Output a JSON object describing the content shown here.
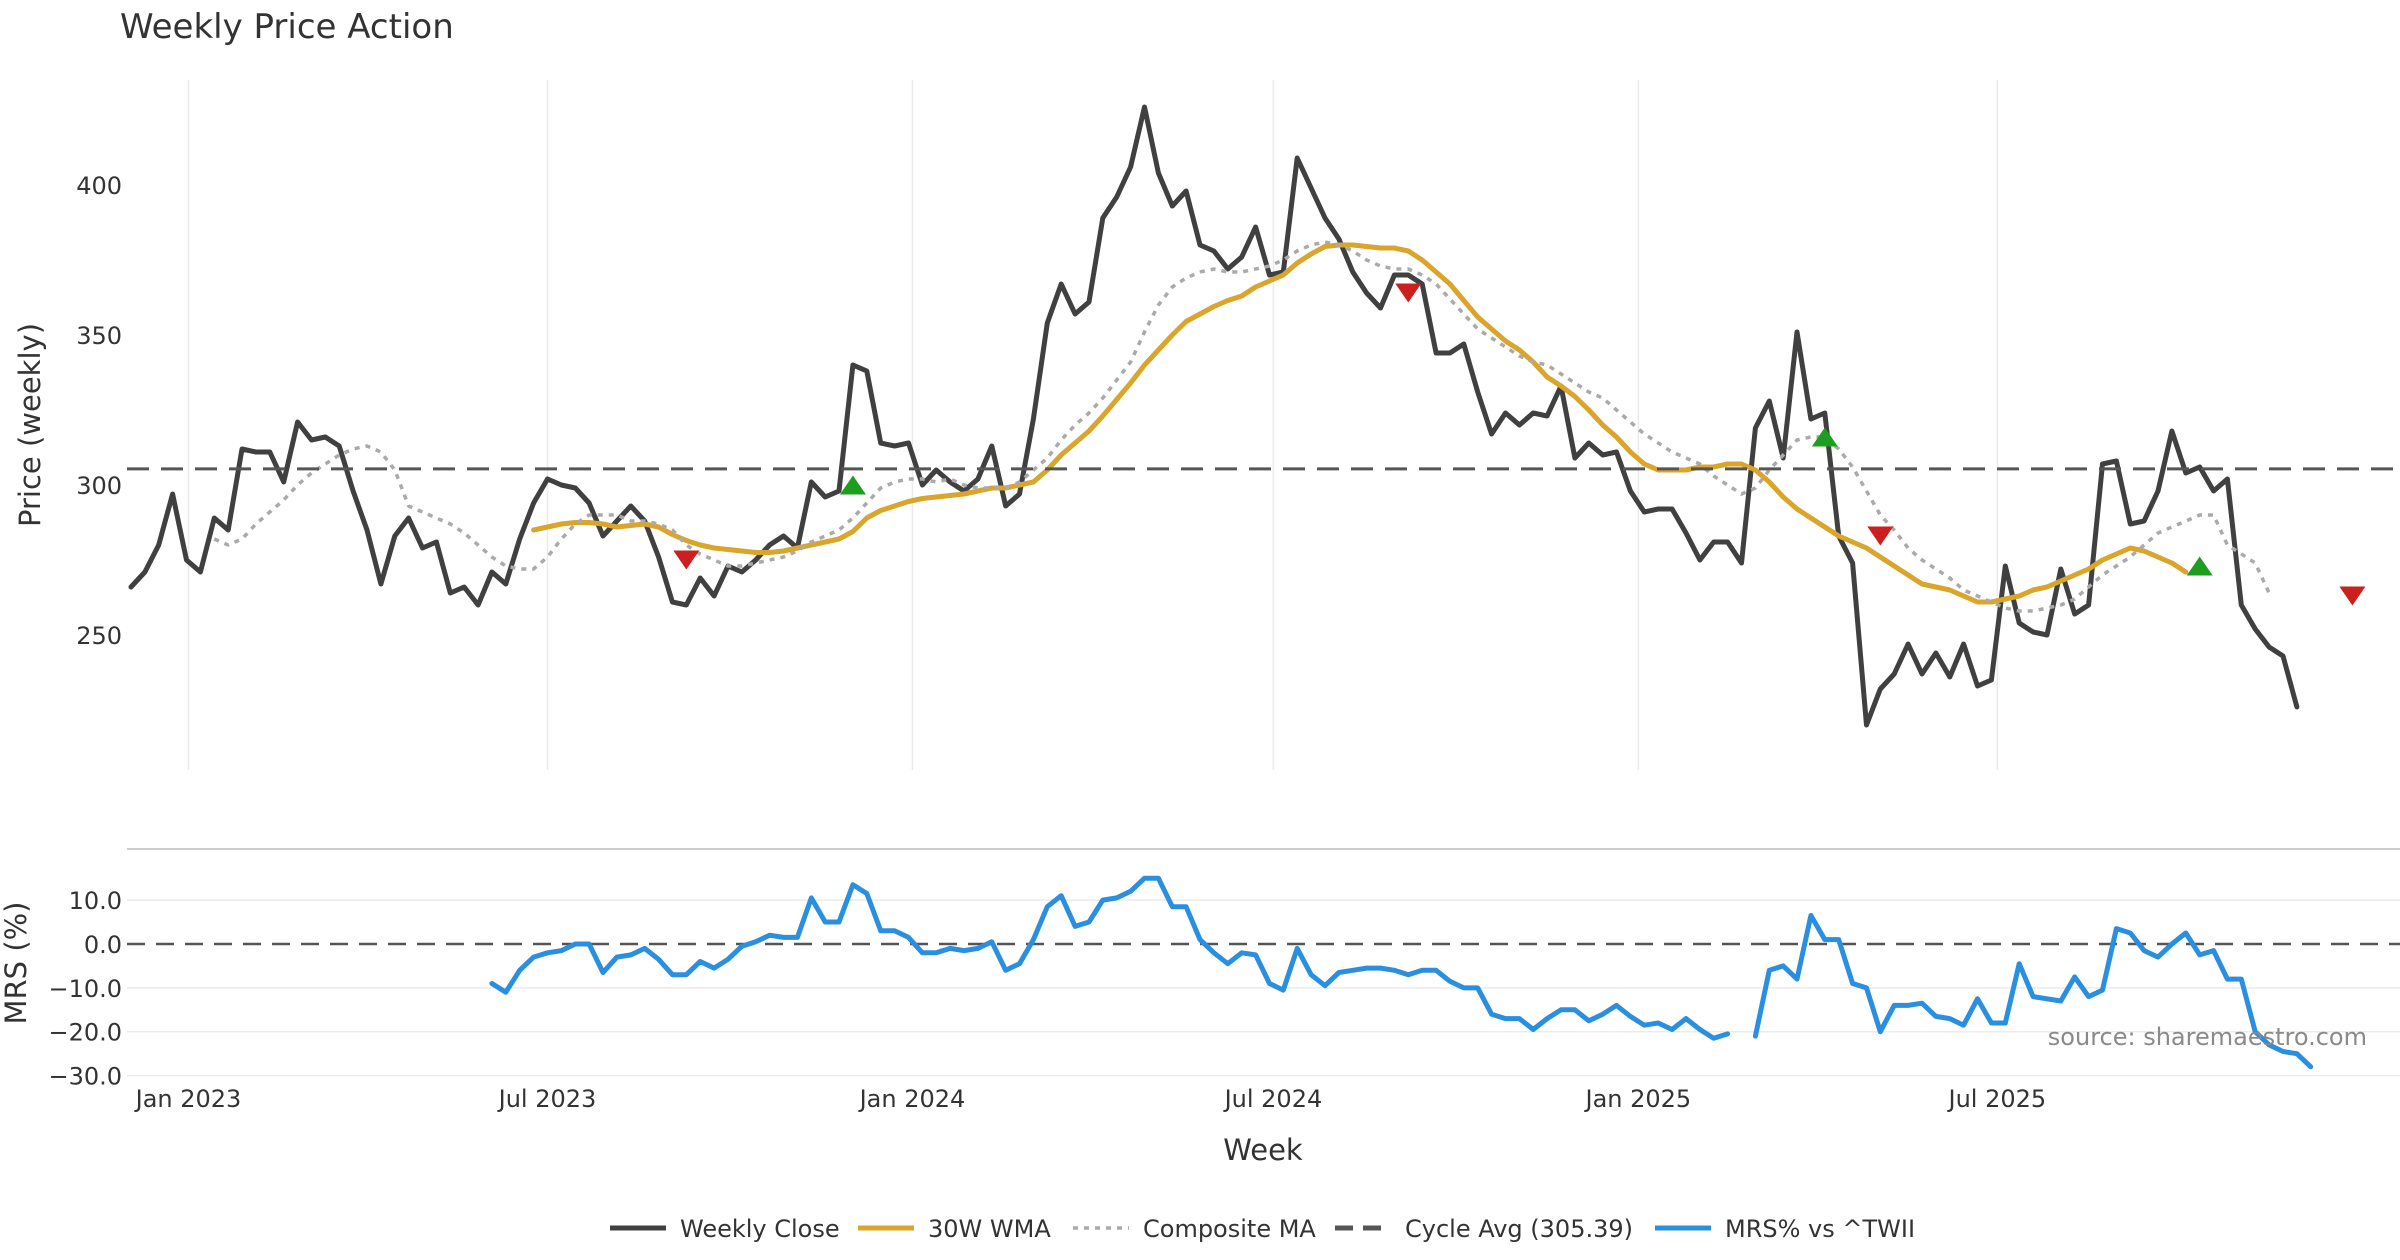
{
  "chart_data": [
    {
      "type": "line",
      "title": "Weekly Price Action",
      "ylabel": "Price (weekly)",
      "xlabel": "Week",
      "ylim": [
        205,
        435
      ],
      "yticks": [
        250,
        300,
        350,
        400
      ],
      "x_start": "2022-12-03",
      "x_step_days": 7,
      "x_ticks": [
        {
          "label": "Jan 2023",
          "date": "2023-01-01"
        },
        {
          "label": "Jul 2023",
          "date": "2023-07-01"
        },
        {
          "label": "Jan 2024",
          "date": "2024-01-01"
        },
        {
          "label": "Jul 2024",
          "date": "2024-07-01"
        },
        {
          "label": "Jan 2025",
          "date": "2025-01-01"
        },
        {
          "label": "Jul 2025",
          "date": "2025-07-01"
        }
      ],
      "x_range": [
        "2022-12-01",
        "2026-01-20"
      ],
      "grid": "vertical",
      "series": [
        {
          "name": "Weekly Close",
          "color": "#404040",
          "style": "solid",
          "values": [
            266,
            271,
            280,
            297,
            275,
            271,
            289,
            285,
            312,
            311,
            311,
            301,
            321,
            315,
            316,
            313,
            298,
            285,
            267,
            283,
            289,
            279,
            281,
            264,
            266,
            260,
            271,
            267,
            282,
            294,
            302,
            300,
            299,
            294,
            283,
            288,
            293,
            288,
            276,
            261,
            260,
            269,
            263,
            273,
            271,
            275,
            280,
            283,
            279,
            301,
            296,
            298,
            340,
            338,
            314,
            313,
            314,
            300,
            305,
            301,
            298,
            302,
            313,
            293,
            297,
            322,
            354,
            367,
            357,
            361,
            389,
            396,
            406,
            426,
            404,
            393,
            398,
            380,
            378,
            372,
            376,
            386,
            370,
            371,
            409,
            399,
            389,
            382,
            371,
            364,
            359,
            370,
            370,
            367,
            344,
            344,
            347,
            331,
            317,
            324,
            320,
            324,
            323,
            333,
            309,
            314,
            310,
            311,
            298,
            291,
            292,
            292,
            284,
            275,
            281,
            281,
            274,
            319,
            328,
            309,
            351,
            322,
            324,
            283,
            274,
            220,
            232,
            237,
            247,
            237,
            244,
            236,
            247,
            233,
            235,
            273,
            254,
            251,
            250,
            272,
            257,
            260,
            307,
            308,
            287,
            288,
            298,
            318,
            304,
            306,
            298,
            302,
            260,
            252,
            246,
            243,
            226
          ]
        },
        {
          "name": "30W WMA",
          "color": "#D9A52A",
          "style": "solid",
          "start_index": 29,
          "values": [
            285,
            286,
            287,
            287.5,
            287.5,
            287,
            286,
            286.5,
            287,
            286,
            283.5,
            281.5,
            280,
            279,
            278.5,
            278,
            277.5,
            277.5,
            278,
            279,
            280,
            281,
            282,
            284.5,
            289,
            291.5,
            293,
            294.5,
            295.5,
            296,
            296.5,
            297,
            298,
            299,
            299,
            300,
            301,
            305,
            310,
            314,
            318,
            323,
            328.5,
            334,
            340,
            345,
            350,
            354.5,
            357,
            359.5,
            361.5,
            363,
            366,
            368,
            370,
            374,
            377,
            379.5,
            380,
            380,
            379.5,
            379,
            379,
            378,
            375,
            371,
            367,
            361.5,
            356,
            352,
            348,
            345,
            341,
            336,
            333,
            329.5,
            325,
            320,
            316,
            311,
            307,
            305,
            305,
            305,
            306,
            306,
            307,
            307,
            305,
            301,
            296,
            292,
            289,
            286,
            283,
            281,
            279,
            276,
            273,
            270,
            267,
            266,
            265,
            263,
            261,
            261,
            262,
            263,
            265,
            266,
            268,
            270,
            272,
            275,
            277,
            279,
            278,
            276,
            274,
            271
          ]
        },
        {
          "name": "Composite MA",
          "color": "#AAAAAA",
          "style": "dotted",
          "start_index": 6,
          "values": [
            282,
            280,
            282,
            287,
            291,
            295,
            300,
            304,
            307,
            310,
            312,
            313,
            311,
            305,
            293,
            291,
            289,
            287,
            284,
            280,
            276,
            273,
            272,
            272,
            276,
            282,
            287,
            290,
            290,
            290,
            288,
            288,
            287,
            285,
            280,
            277,
            275,
            273,
            273,
            274,
            275,
            276,
            278,
            281,
            283,
            285,
            289,
            294,
            299,
            301,
            302,
            302,
            301,
            302,
            300,
            299,
            299,
            299,
            301,
            305,
            309,
            315,
            320,
            324,
            329,
            335,
            341,
            351,
            360,
            366,
            369,
            371,
            372,
            371,
            371,
            372,
            373,
            375,
            378,
            380,
            381,
            380,
            378,
            375,
            373,
            372,
            372,
            370,
            367,
            362,
            357,
            352,
            349,
            346,
            343,
            341,
            340,
            337,
            334,
            331,
            329,
            325,
            321,
            317,
            314,
            311,
            309,
            307,
            303,
            300,
            297,
            299,
            305,
            310,
            315,
            316,
            316,
            312,
            306,
            298,
            290,
            285,
            279,
            275,
            272,
            269,
            265,
            263,
            261,
            259,
            258,
            258,
            259,
            260,
            262,
            266,
            270,
            273,
            276,
            280,
            284,
            286,
            288,
            290,
            290,
            280,
            277,
            274,
            264
          ]
        },
        {
          "name": "Cycle Avg (305.39)",
          "color": "#555555",
          "style": "dashed",
          "constant": 305.39
        }
      ],
      "markers": [
        {
          "direction": "down",
          "index": 40,
          "value": 275,
          "color": "#CC1F1F"
        },
        {
          "direction": "up",
          "index": 52,
          "value": 300,
          "color": "#1E9E1E"
        },
        {
          "direction": "down",
          "index": 92,
          "value": 364,
          "color": "#CC1F1F"
        },
        {
          "direction": "up",
          "index": 122,
          "value": 316,
          "color": "#1E9E1E"
        },
        {
          "direction": "down",
          "index": 126,
          "value": 283,
          "color": "#CC1F1F"
        },
        {
          "direction": "up",
          "index": 149,
          "value": 273,
          "color": "#1E9E1E"
        },
        {
          "direction": "down",
          "index": 160,
          "value": 263,
          "color": "#CC1F1F"
        }
      ]
    },
    {
      "type": "line",
      "ylabel": "MRS (%)",
      "ylim": [
        -31,
        18
      ],
      "yticks": [
        10.0,
        0.0,
        -10.0,
        -20.0,
        -30.0
      ],
      "ytick_labels": [
        "10.0",
        "0.0",
        "−10.0",
        "−20.0",
        "−30.0"
      ],
      "zero_line": {
        "value": 0,
        "style": "dashed",
        "color": "#555555"
      },
      "series": [
        {
          "name": "MRS% vs ^TWII",
          "color": "#2B8FE0",
          "style": "solid",
          "start_index": 26,
          "values": [
            -9,
            -11,
            -6,
            -3,
            -2,
            -1.5,
            0,
            0,
            -6.5,
            -3,
            -2.5,
            -1,
            -3.5,
            -7,
            -7,
            -4,
            -5.5,
            -3.5,
            -0.5,
            0.5,
            2,
            1.5,
            1.5,
            10.5,
            5,
            5,
            13.5,
            11.5,
            3,
            3,
            1.5,
            -2,
            -2,
            -1,
            -1.5,
            -1,
            0.5,
            -6,
            -4.5,
            1,
            8.5,
            11,
            4,
            5,
            10,
            10.5,
            12,
            15,
            15,
            8.5,
            8.5,
            1,
            -2,
            -4.5,
            -2,
            -2.5,
            -9,
            -10.5,
            -1,
            -7,
            -9.5,
            -6.5,
            -6,
            -5.5,
            -5.5,
            -6,
            -7,
            -6,
            -6,
            -8.5,
            -10,
            -10,
            -16,
            -17,
            -17,
            -19.5,
            -17,
            -15,
            -15,
            -17.5,
            -16,
            -14,
            -16.5,
            -18.5,
            -18,
            -19.5,
            -17,
            -19.5,
            -21.5,
            -20.5,
            null,
            -21,
            -6,
            -5,
            -8,
            6.5,
            1,
            1,
            -9,
            -10,
            -20,
            -14,
            -14,
            -13.5,
            -16.5,
            -17,
            -18.5,
            -12.5,
            -18,
            -18,
            -4.5,
            -12,
            -12.5,
            -13,
            -7.5,
            -12,
            -10.5,
            3.5,
            2.5,
            -1.5,
            -3,
            0,
            2.5,
            -2.5,
            -1.5,
            -8,
            -8,
            -20,
            -23,
            -24.5,
            -25,
            -28
          ]
        }
      ],
      "annotation": "source: sharemaestro.com"
    }
  ],
  "legend": [
    {
      "label": "Weekly Close",
      "color": "#404040",
      "style": "solid"
    },
    {
      "label": "30W WMA",
      "color": "#D9A52A",
      "style": "solid"
    },
    {
      "label": "Composite MA",
      "color": "#AAAAAA",
      "style": "dotted"
    },
    {
      "label": "Cycle Avg (305.39)",
      "color": "#555555",
      "style": "dashed"
    },
    {
      "label": "MRS% vs ^TWII",
      "color": "#2B8FE0",
      "style": "solid"
    }
  ],
  "legend_position": "bottom-center"
}
